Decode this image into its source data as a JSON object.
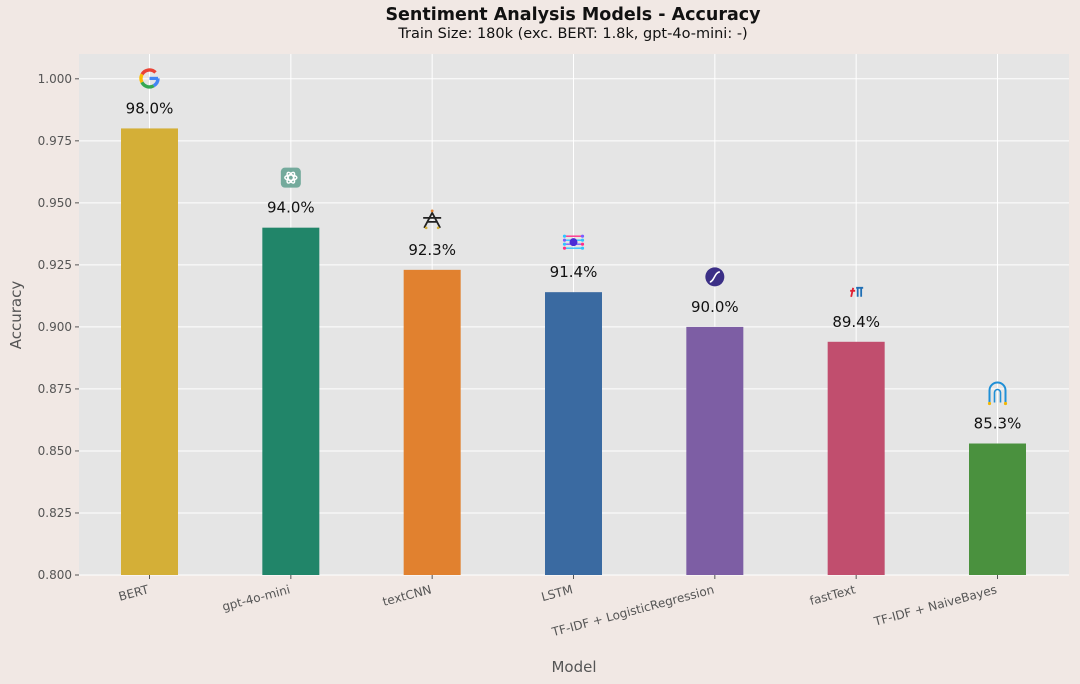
{
  "chart_data": {
    "type": "bar",
    "title": "Sentiment Analysis Models - Accuracy",
    "subtitle": "Train Size: 180k (exc. BERT: 1.8k, gpt-4o-mini: -)",
    "xlabel": "Model",
    "ylabel": "Accuracy",
    "ylim": [
      0.8,
      1.01
    ],
    "yticks": [
      "0.800",
      "0.825",
      "0.850",
      "0.875",
      "0.900",
      "0.925",
      "0.950",
      "0.975",
      "1.000"
    ],
    "grid": true,
    "categories": [
      "BERT",
      "gpt-4o-mini",
      "textCNN",
      "LSTM",
      "TF-IDF + LogisticRegression",
      "fastText",
      "TF-IDF + NaiveBayes"
    ],
    "values": [
      0.98,
      0.94,
      0.923,
      0.914,
      0.9,
      0.894,
      0.853
    ],
    "value_labels": [
      "98.0%",
      "94.0%",
      "92.3%",
      "91.4%",
      "90.0%",
      "89.4%",
      "85.3%"
    ],
    "colors": [
      "#d4af37",
      "#218569",
      "#e1812f",
      "#3a6aa1",
      "#7d5ea4",
      "#c14e6e",
      "#4a913e"
    ],
    "icons": [
      "google-icon",
      "openai-icon",
      "textcnn-icon",
      "lstm-icon",
      "logistic-regression-icon",
      "fasttext-icon",
      "naive-bayes-icon"
    ]
  }
}
